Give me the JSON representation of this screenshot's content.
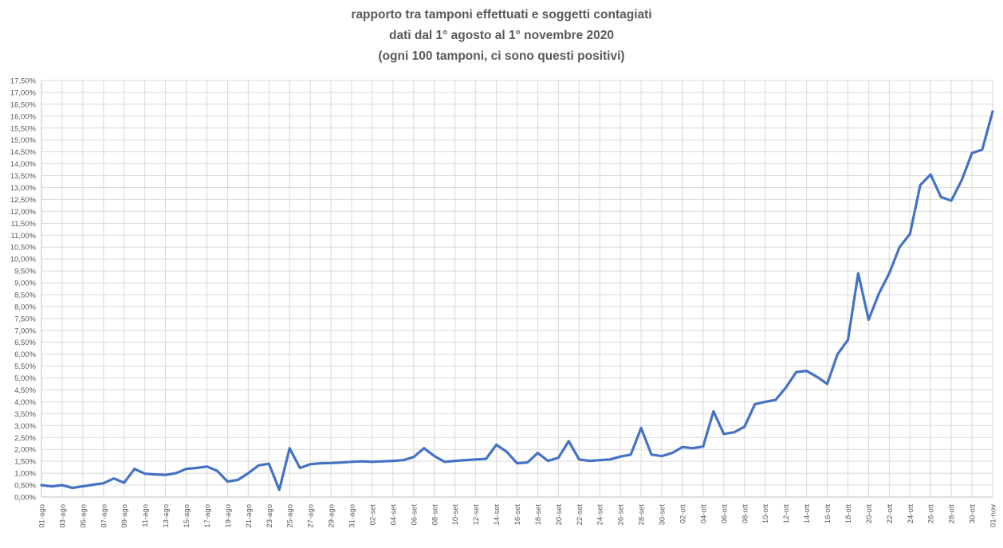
{
  "chart_data": {
    "type": "line",
    "title": "rapporto tra tamponi effettuati e soggetti contagiati",
    "subtitle": "dati dal 1° agosto al 1° novembre 2020",
    "subtitle2": "(ogni 100 tamponi, ci sono questi positivi)",
    "legend_position": "none",
    "grid": true,
    "x_tick_every": 2,
    "ylim": [
      0,
      17.5
    ],
    "ylabel": "",
    "xlabel": "",
    "y_tick_labels": [
      "0,00%",
      "0,50%",
      "1,00%",
      "1,50%",
      "2,00%",
      "2,50%",
      "3,00%",
      "3,50%",
      "4,00%",
      "4,50%",
      "5,00%",
      "5,50%",
      "6,00%",
      "6,50%",
      "7,00%",
      "7,50%",
      "8,00%",
      "8,50%",
      "9,00%",
      "9,50%",
      "10,00%",
      "10,50%",
      "11,00%",
      "11,50%",
      "12,00%",
      "12,50%",
      "13,00%",
      "13,50%",
      "14,00%",
      "14,50%",
      "15,00%",
      "15,50%",
      "16,00%",
      "16,50%",
      "17,00%",
      "17,50%"
    ],
    "x": [
      "01-ago",
      "02-ago",
      "03-ago",
      "04-ago",
      "05-ago",
      "06-ago",
      "07-ago",
      "08-ago",
      "09-ago",
      "10-ago",
      "11-ago",
      "12-ago",
      "13-ago",
      "14-ago",
      "15-ago",
      "16-ago",
      "17-ago",
      "18-ago",
      "19-ago",
      "20-ago",
      "21-ago",
      "22-ago",
      "23-ago",
      "24-ago",
      "25-ago",
      "26-ago",
      "27-ago",
      "28-ago",
      "29-ago",
      "30-ago",
      "31-ago",
      "01-set",
      "02-set",
      "03-set",
      "04-set",
      "05-set",
      "06-set",
      "07-set",
      "08-set",
      "09-set",
      "10-set",
      "11-set",
      "12-set",
      "13-set",
      "14-set",
      "15-set",
      "16-set",
      "17-set",
      "18-set",
      "19-set",
      "20-set",
      "21-set",
      "22-set",
      "23-set",
      "24-set",
      "25-set",
      "26-set",
      "27-set",
      "28-set",
      "29-set",
      "30-set",
      "01-ott",
      "02-ott",
      "03-ott",
      "04-ott",
      "05-ott",
      "06-ott",
      "07-ott",
      "08-ott",
      "09-ott",
      "10-ott",
      "11-ott",
      "12-ott",
      "13-ott",
      "14-ott",
      "15-ott",
      "16-ott",
      "17-ott",
      "18-ott",
      "19-ott",
      "20-ott",
      "21-ott",
      "22-ott",
      "23-ott",
      "24-ott",
      "25-ott",
      "26-ott",
      "27-ott",
      "28-ott",
      "29-ott",
      "30-ott",
      "31-ott",
      "01-nov"
    ],
    "values": [
      0.5,
      0.45,
      0.5,
      0.38,
      0.45,
      0.52,
      0.58,
      0.78,
      0.6,
      1.18,
      0.98,
      0.95,
      0.93,
      1.0,
      1.18,
      1.22,
      1.28,
      1.1,
      0.65,
      0.72,
      1.0,
      1.33,
      1.4,
      0.3,
      2.05,
      1.22,
      1.38,
      1.42,
      1.43,
      1.45,
      1.48,
      1.5,
      1.48,
      1.5,
      1.52,
      1.55,
      1.68,
      2.05,
      1.72,
      1.48,
      1.52,
      1.55,
      1.58,
      1.6,
      2.2,
      1.9,
      1.42,
      1.45,
      1.85,
      1.52,
      1.65,
      2.35,
      1.58,
      1.52,
      1.55,
      1.58,
      1.7,
      1.78,
      2.9,
      1.78,
      1.72,
      1.85,
      2.1,
      2.05,
      2.12,
      3.6,
      2.65,
      2.72,
      2.95,
      3.9,
      4.0,
      4.08,
      4.6,
      5.25,
      5.3,
      5.05,
      4.75,
      6.0,
      6.6,
      9.4,
      7.45,
      8.55,
      9.4,
      10.5,
      11.05,
      13.1,
      13.55,
      12.6,
      12.45,
      13.3,
      14.45,
      14.6,
      16.2
    ],
    "colors": {
      "line": "#4472C4",
      "grid": "#D9D9D9",
      "axis": "#BFBFBF",
      "text": "#595959",
      "title": "#595959"
    }
  }
}
